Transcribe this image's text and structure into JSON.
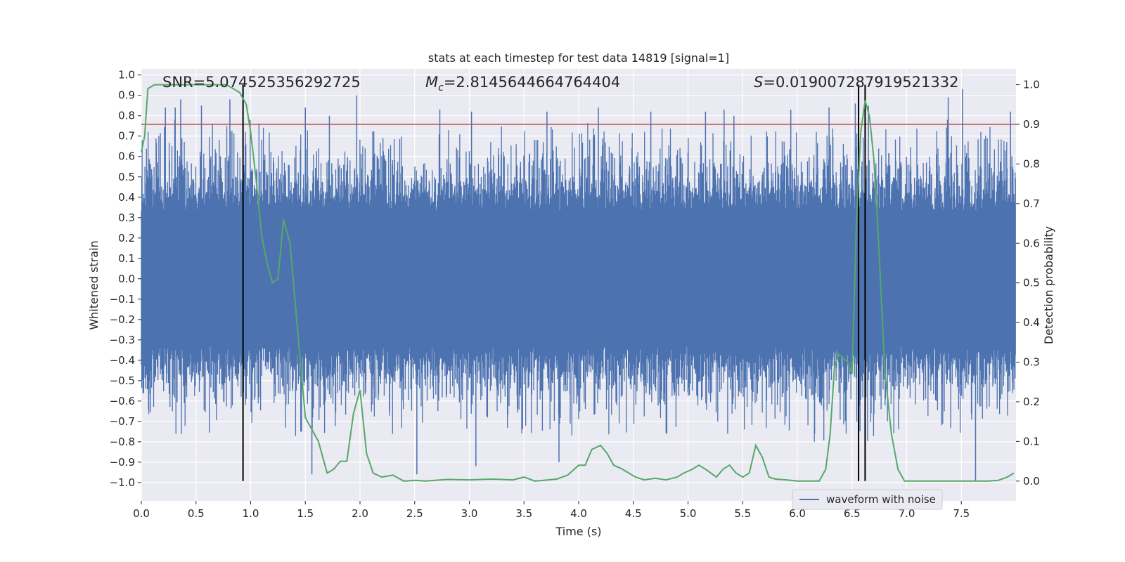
{
  "chart_data": {
    "type": "line",
    "title": "stats at each timestep for test data 14819 [signal=1]",
    "xlabel": "Time (s)",
    "ylabel_left": "Whitened strain",
    "ylabel_right": "Detection probability",
    "xlim": [
      0.0,
      8.0
    ],
    "ylim_left": [
      -1.09,
      1.03
    ],
    "ylim_right": [
      -0.05,
      1.04
    ],
    "xticks": [
      0.0,
      0.5,
      1.0,
      1.5,
      2.0,
      2.5,
      3.0,
      3.5,
      4.0,
      4.5,
      5.0,
      5.5,
      6.0,
      6.5,
      7.0,
      7.5
    ],
    "xtick_labels": [
      "0.0",
      "0.5",
      "1.0",
      "1.5",
      "2.0",
      "2.5",
      "3.0",
      "3.5",
      "4.0",
      "4.5",
      "5.0",
      "5.5",
      "6.0",
      "6.5",
      "7.0",
      "7.5"
    ],
    "yticks_left": [
      1.0,
      0.9,
      0.8,
      0.7,
      0.6,
      0.5,
      0.4,
      0.3,
      0.2,
      0.1,
      0.0,
      -0.1,
      -0.2,
      -0.3,
      -0.4,
      -0.5,
      -0.6,
      -0.7,
      -0.8,
      -0.9,
      -1.0
    ],
    "ytick_labels_left": [
      "1.0",
      "0.9",
      "0.8",
      "0.7",
      "0.6",
      "0.5",
      "0.4",
      "0.3",
      "0.2",
      "0.1",
      "0.0",
      "−0.1",
      "−0.2",
      "−0.3",
      "−0.4",
      "−0.5",
      "−0.6",
      "−0.7",
      "−0.8",
      "−0.9",
      "−1.0"
    ],
    "yticks_right": [
      1.0,
      0.9,
      0.8,
      0.7,
      0.6,
      0.5,
      0.4,
      0.3,
      0.2,
      0.1,
      0.0
    ],
    "ytick_labels_right": [
      "1.0",
      "0.9",
      "0.8",
      "0.7",
      "0.6",
      "0.5",
      "0.4",
      "0.3",
      "0.2",
      "0.1",
      "0.0"
    ],
    "annotations": {
      "snr": "SNR=5.074525356292725",
      "mc_symbol": "M",
      "mc_subscript": "c",
      "mc_value": "=2.8145644664764404",
      "s_symbol": "S",
      "s_value": "=0.019007287919521332"
    },
    "threshold": {
      "value": 0.9,
      "axis": "right",
      "color": "#c44e52"
    },
    "vertical_markers_x": [
      0.93,
      6.56,
      6.62
    ],
    "waveform": {
      "name": "waveform with noise",
      "color": "#4c72b0",
      "envelope_note": "dense noise, |strain| mostly within ±0.35, spikes up to ~0.93 and down to ~-1.0",
      "spike_x": [
        0.22,
        0.31,
        0.36,
        0.55,
        0.81,
        1.5,
        1.56,
        1.72,
        1.97,
        2.52,
        2.73,
        3.02,
        3.06,
        3.71,
        3.82,
        4.18,
        4.66,
        5.16,
        5.33,
        5.42,
        5.94,
        6.29,
        6.53,
        6.65,
        7.38,
        7.51,
        7.63,
        7.95
      ],
      "spike_y": [
        0.84,
        0.84,
        0.88,
        0.85,
        0.88,
        0.84,
        -0.96,
        0.8,
        0.9,
        -0.96,
        0.83,
        0.82,
        -0.92,
        0.82,
        -0.9,
        0.84,
        0.82,
        0.82,
        0.83,
        0.8,
        0.83,
        0.84,
        0.86,
        0.85,
        0.89,
        0.93,
        -0.99,
        0.82
      ]
    },
    "probability": {
      "name": "detection probability",
      "color": "#55a868",
      "x": [
        0.0,
        0.03,
        0.06,
        0.12,
        0.2,
        0.3,
        0.4,
        0.5,
        0.6,
        0.7,
        0.78,
        0.84,
        0.9,
        0.96,
        1.0,
        1.05,
        1.1,
        1.15,
        1.2,
        1.25,
        1.3,
        1.36,
        1.42,
        1.5,
        1.56,
        1.62,
        1.7,
        1.76,
        1.82,
        1.88,
        1.94,
        2.0,
        2.06,
        2.12,
        2.2,
        2.3,
        2.4,
        2.5,
        2.6,
        2.8,
        3.0,
        3.2,
        3.4,
        3.5,
        3.6,
        3.8,
        3.9,
        4.0,
        4.06,
        4.12,
        4.2,
        4.26,
        4.32,
        4.4,
        4.46,
        4.52,
        4.6,
        4.7,
        4.8,
        4.9,
        4.96,
        5.04,
        5.1,
        5.16,
        5.26,
        5.32,
        5.38,
        5.44,
        5.5,
        5.56,
        5.62,
        5.68,
        5.74,
        5.8,
        5.9,
        6.0,
        6.1,
        6.2,
        6.26,
        6.3,
        6.34,
        6.38,
        6.42,
        6.46,
        6.5,
        6.54,
        6.58,
        6.62,
        6.66,
        6.7,
        6.74,
        6.8,
        6.86,
        6.92,
        6.98,
        7.06,
        7.2,
        7.4,
        7.6,
        7.75,
        7.84,
        7.92,
        7.98
      ],
      "y": [
        0.83,
        0.87,
        0.99,
        1.0,
        1.0,
        1.0,
        1.0,
        1.0,
        1.0,
        1.0,
        1.0,
        0.99,
        0.98,
        0.95,
        0.88,
        0.76,
        0.62,
        0.55,
        0.5,
        0.51,
        0.66,
        0.6,
        0.41,
        0.16,
        0.13,
        0.1,
        0.02,
        0.03,
        0.05,
        0.05,
        0.17,
        0.23,
        0.07,
        0.02,
        0.01,
        0.015,
        0.0,
        0.002,
        0.0,
        0.004,
        0.003,
        0.005,
        0.003,
        0.01,
        0.0,
        0.005,
        0.015,
        0.04,
        0.04,
        0.08,
        0.09,
        0.07,
        0.04,
        0.03,
        0.02,
        0.01,
        0.003,
        0.007,
        0.003,
        0.01,
        0.02,
        0.03,
        0.04,
        0.03,
        0.01,
        0.03,
        0.04,
        0.02,
        0.01,
        0.02,
        0.09,
        0.06,
        0.01,
        0.005,
        0.003,
        0.0,
        0.0,
        0.0,
        0.03,
        0.12,
        0.29,
        0.32,
        0.31,
        0.3,
        0.27,
        0.65,
        0.88,
        0.96,
        0.92,
        0.81,
        0.62,
        0.28,
        0.12,
        0.03,
        0.0,
        0.0,
        0.0,
        0.0,
        0.0,
        0.0,
        0.002,
        0.01,
        0.02
      ]
    },
    "legend": {
      "label": "waveform with noise",
      "position": "lower-right"
    }
  }
}
